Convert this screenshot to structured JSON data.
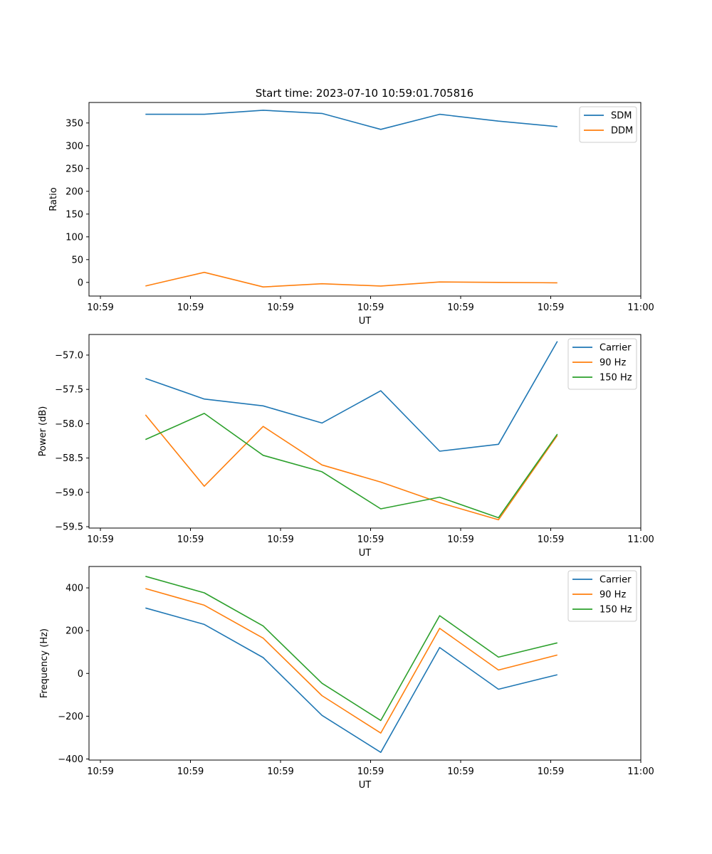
{
  "figure_title": "Start time: 2023-07-10 10:59:01.705816",
  "colors": {
    "blue": "#1f77b4",
    "orange": "#ff7f0e",
    "green": "#2ca02c"
  },
  "chart_data": [
    {
      "type": "line",
      "xlabel": "UT",
      "ylabel": "Ratio",
      "ylim": [
        -30,
        395
      ],
      "yticks": [
        0,
        50,
        100,
        150,
        200,
        250,
        300,
        350
      ],
      "xlim": [
        -0.19,
        9.0
      ],
      "xticks": [
        0,
        1.5,
        3,
        4.5,
        6,
        7.5,
        9
      ],
      "xticklabels": [
        "10:59",
        "10:59",
        "10:59",
        "10:59",
        "10:59",
        "10:59",
        "11:00"
      ],
      "x": [
        0.75,
        1.73,
        2.71,
        3.69,
        4.67,
        5.65,
        6.63,
        7.61
      ],
      "legend_position": "upper-right",
      "series": [
        {
          "name": "SDM",
          "color_key": "blue",
          "values": [
            369,
            369,
            378,
            371,
            336,
            369,
            354,
            342
          ]
        },
        {
          "name": "DDM",
          "color_key": "orange",
          "values": [
            -8,
            22,
            -10,
            -3,
            -8,
            1,
            0,
            -1
          ]
        }
      ]
    },
    {
      "type": "line",
      "xlabel": "UT",
      "ylabel": "Power (dB)",
      "ylim": [
        -59.52,
        -56.7
      ],
      "yticks": [
        -57.0,
        -57.5,
        -58.0,
        -58.5,
        -59.0,
        -59.5
      ],
      "yticklabels": [
        "−57.0",
        "−57.5",
        "−58.0",
        "−58.5",
        "−59.0",
        "−59.5"
      ],
      "xlim": [
        -0.19,
        9.0
      ],
      "xticks": [
        0,
        1.5,
        3,
        4.5,
        6,
        7.5,
        9
      ],
      "xticklabels": [
        "10:59",
        "10:59",
        "10:59",
        "10:59",
        "10:59",
        "10:59",
        "11:00"
      ],
      "x": [
        0.75,
        1.73,
        2.71,
        3.69,
        4.67,
        5.65,
        6.63,
        7.61
      ],
      "legend_position": "upper-right",
      "series": [
        {
          "name": "Carrier",
          "color_key": "blue",
          "values": [
            -57.34,
            -57.64,
            -57.74,
            -57.99,
            -57.52,
            -58.4,
            -58.3,
            -56.8
          ]
        },
        {
          "name": "90 Hz",
          "color_key": "orange",
          "values": [
            -57.87,
            -58.91,
            -58.04,
            -58.6,
            -58.85,
            -59.15,
            -59.4,
            -58.17
          ]
        },
        {
          "name": "150 Hz",
          "color_key": "green",
          "values": [
            -58.23,
            -57.85,
            -58.46,
            -58.7,
            -59.24,
            -59.07,
            -59.37,
            -58.15
          ]
        }
      ]
    },
    {
      "type": "line",
      "xlabel": "UT",
      "ylabel": "Frequency (Hz)",
      "ylim": [
        -405,
        500
      ],
      "yticks": [
        -400,
        -200,
        0,
        200,
        400
      ],
      "yticklabels": [
        "−400",
        "−200",
        "0",
        "200",
        "400"
      ],
      "xlim": [
        -0.19,
        9.0
      ],
      "xticks": [
        0,
        1.5,
        3,
        4.5,
        6,
        7.5,
        9
      ],
      "xticklabels": [
        "10:59",
        "10:59",
        "10:59",
        "10:59",
        "10:59",
        "10:59",
        "11:00"
      ],
      "x": [
        0.75,
        1.73,
        2.71,
        3.69,
        4.67,
        5.65,
        6.63,
        7.61
      ],
      "legend_position": "upper-right",
      "series": [
        {
          "name": "Carrier",
          "color_key": "blue",
          "values": [
            306,
            229,
            74,
            -196,
            -369,
            121,
            -74,
            -6
          ]
        },
        {
          "name": "90 Hz",
          "color_key": "orange",
          "values": [
            397,
            319,
            165,
            -104,
            -279,
            211,
            16,
            86
          ]
        },
        {
          "name": "150 Hz",
          "color_key": "green",
          "values": [
            454,
            377,
            222,
            -46,
            -220,
            270,
            76,
            143
          ]
        }
      ]
    }
  ]
}
